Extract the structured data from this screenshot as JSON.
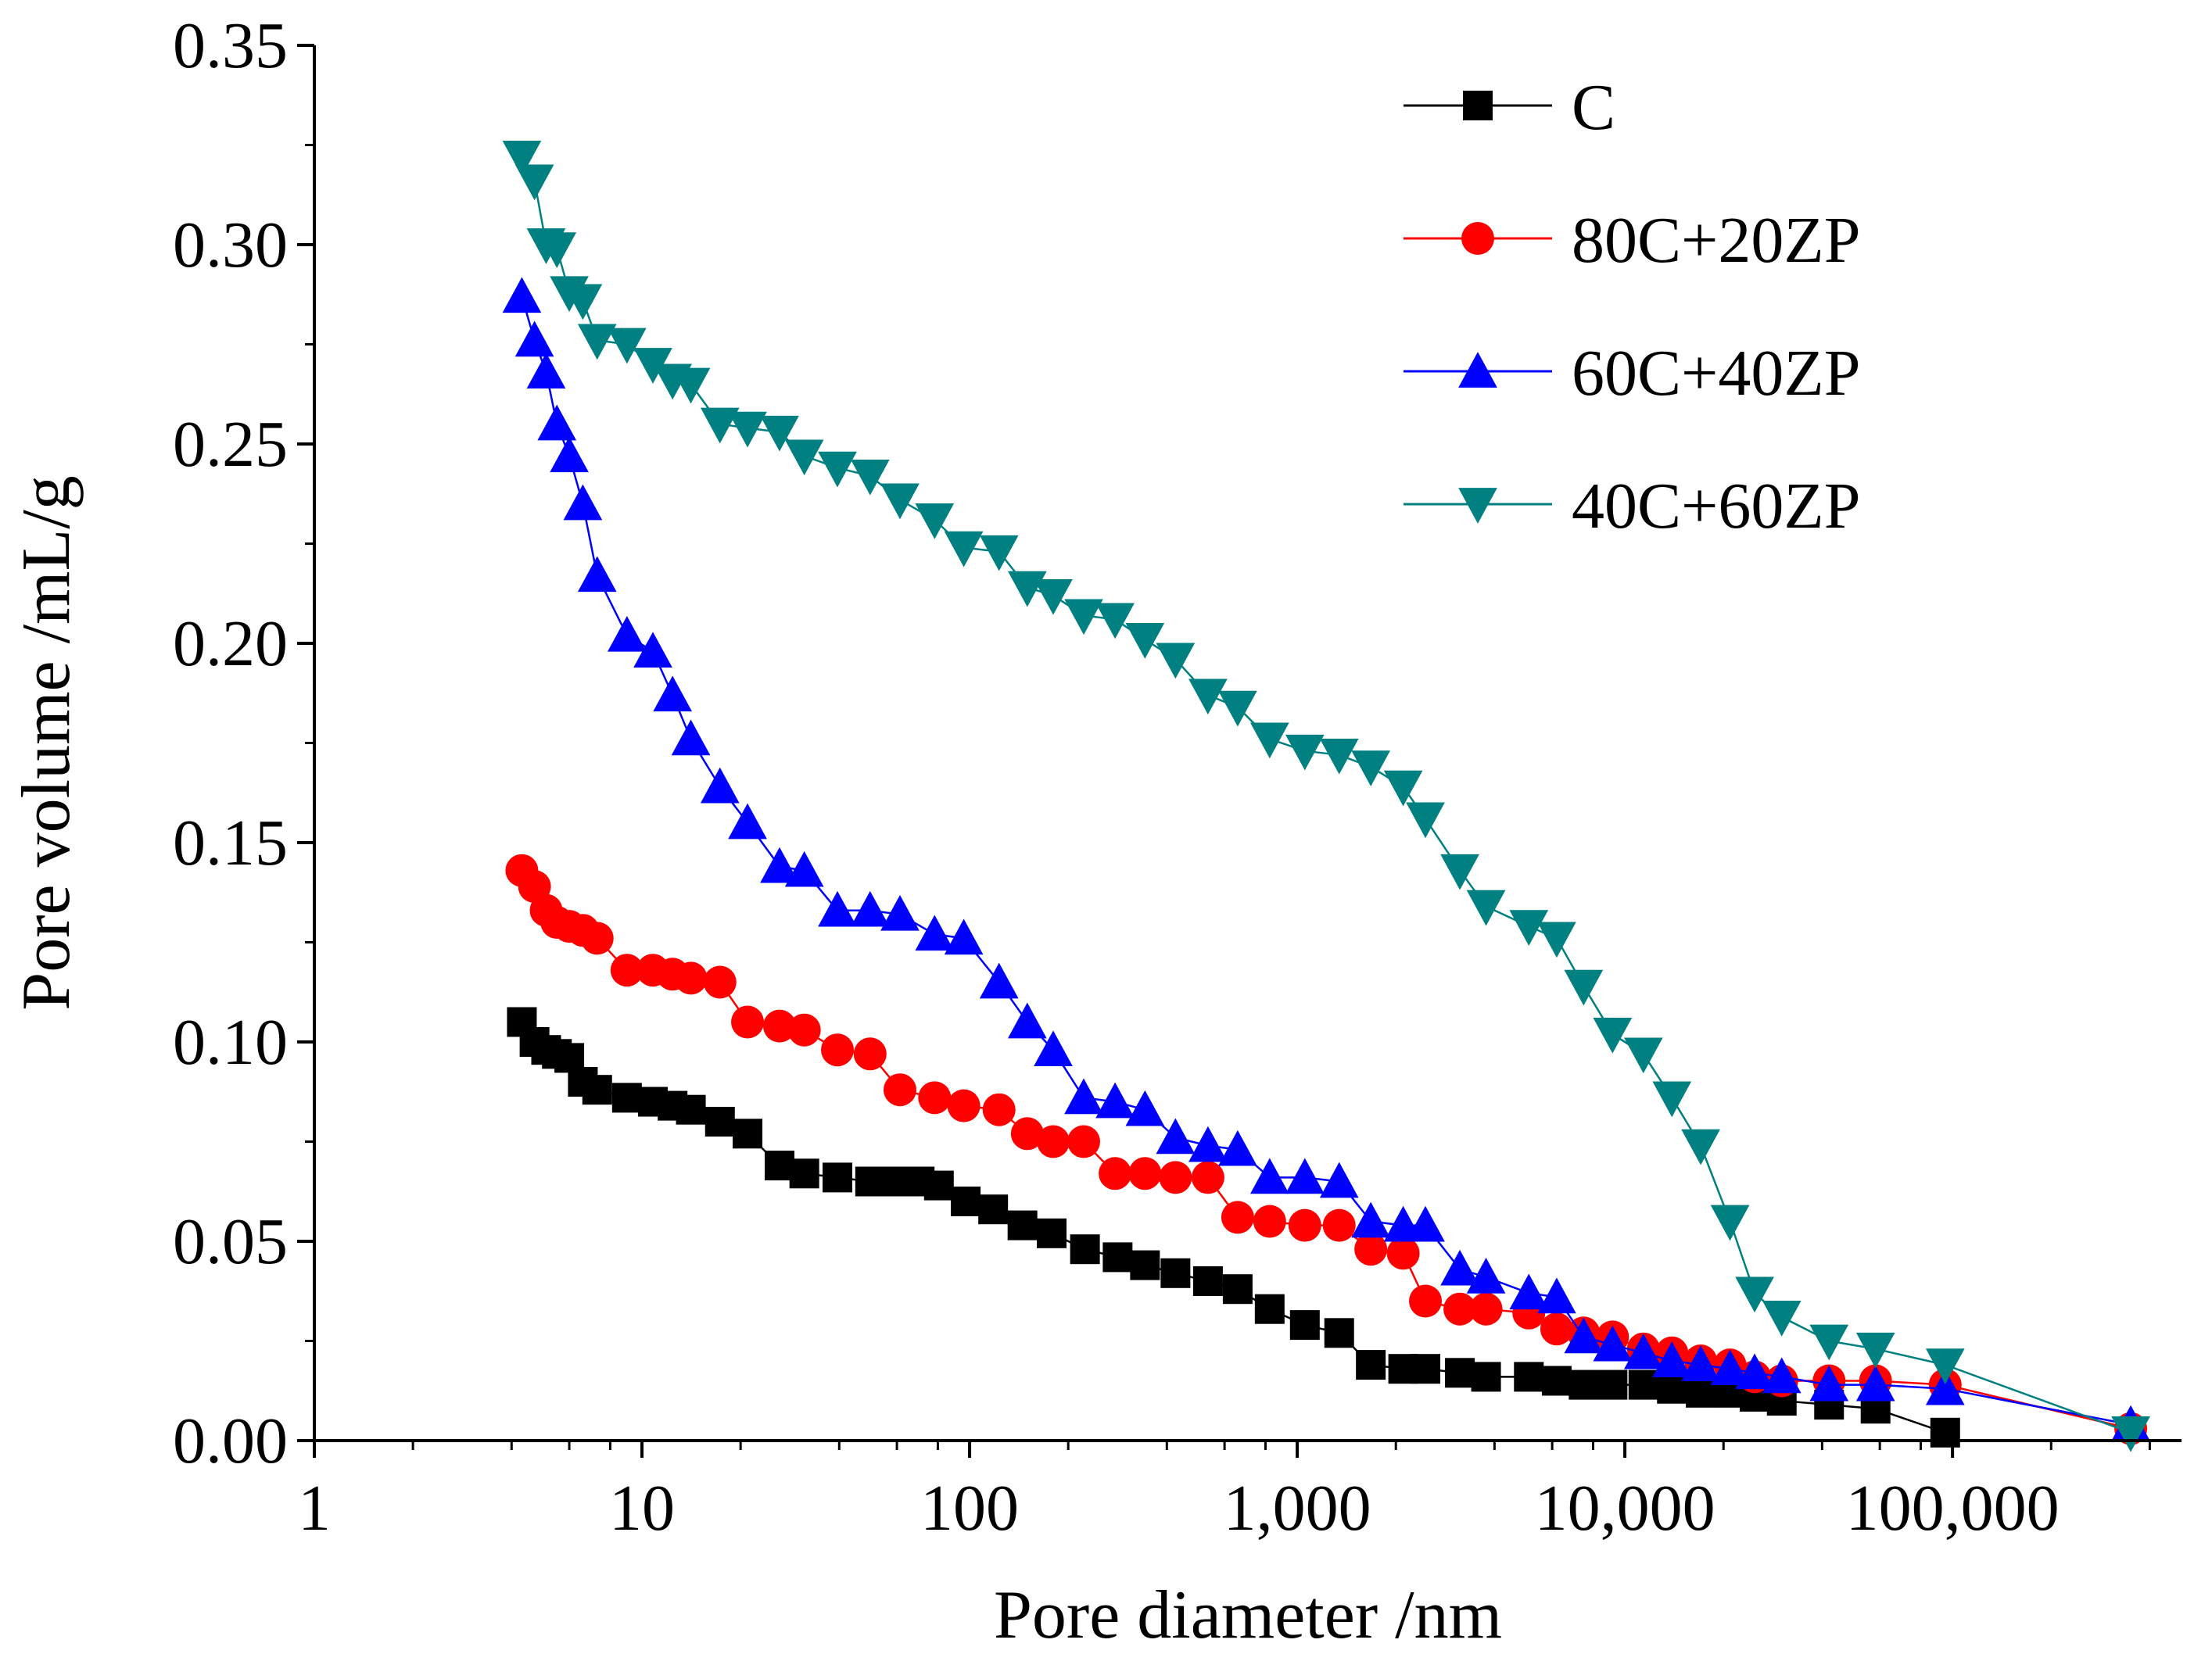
{
  "chart_data": {
    "type": "line",
    "title": "",
    "xlabel": "Pore diameter /nm",
    "ylabel": "Pore volume /mL/g",
    "xscale": "log",
    "xlim": [
      1,
      500000
    ],
    "ylim": [
      0,
      0.35
    ],
    "x_ticks": [
      1,
      10,
      100,
      1000,
      10000,
      100000
    ],
    "x_tick_labels": [
      "1",
      "10",
      "100",
      "1,000",
      "10,000",
      "100,000"
    ],
    "y_ticks": [
      0,
      0.05,
      0.1,
      0.15,
      0.2,
      0.25,
      0.3,
      0.35
    ],
    "y_tick_labels": [
      "0.00",
      "0.05",
      "0.10",
      "0.15",
      "0.20",
      "0.25",
      "0.30",
      "0.35"
    ],
    "legend_position": "top-right",
    "series": [
      {
        "name": "C",
        "color": "#000000",
        "marker": "square",
        "x": [
          4.3,
          4.7,
          5.1,
          5.5,
          6.0,
          6.6,
          7.3,
          9.0,
          10.8,
          12.4,
          14.1,
          17.3,
          21.0,
          26.3,
          31.3,
          39.5,
          49.7,
          59.7,
          70.4,
          80.6,
          97.3,
          118,
          145,
          178,
          225,
          283,
          343,
          425,
          534,
          658,
          824,
          1055,
          1343,
          1677,
          2106,
          2462,
          3136,
          3770,
          5092,
          6194,
          7484,
          9170,
          11392,
          13918,
          17041,
          20937,
          24895,
          30118,
          42003,
          58231,
          95000
        ],
        "y": [
          0.105,
          0.1,
          0.098,
          0.097,
          0.096,
          0.09,
          0.088,
          0.086,
          0.085,
          0.084,
          0.083,
          0.08,
          0.077,
          0.069,
          0.067,
          0.066,
          0.065,
          0.065,
          0.065,
          0.064,
          0.06,
          0.058,
          0.054,
          0.052,
          0.048,
          0.046,
          0.044,
          0.042,
          0.04,
          0.038,
          0.033,
          0.029,
          0.027,
          0.019,
          0.018,
          0.018,
          0.017,
          0.016,
          0.016,
          0.015,
          0.014,
          0.014,
          0.014,
          0.013,
          0.012,
          0.012,
          0.011,
          0.01,
          0.009,
          0.008,
          0.002
        ]
      },
      {
        "name": "80C+20ZP",
        "color": "#ff0000",
        "marker": "circle",
        "x": [
          4.3,
          4.7,
          5.1,
          5.5,
          6.0,
          6.6,
          7.3,
          9.0,
          10.8,
          12.4,
          14.1,
          17.3,
          21.0,
          26.3,
          31.3,
          39.5,
          49.7,
          61.3,
          78.2,
          96.0,
          123,
          150,
          180,
          223,
          278,
          343,
          425,
          534,
          658,
          824,
          1055,
          1343,
          1677,
          2106,
          2462,
          3136,
          3770,
          5092,
          6194,
          7484,
          9170,
          11392,
          13918,
          17041,
          20937,
          24895,
          30118,
          42003,
          58231,
          95000,
          350000
        ],
        "y": [
          0.143,
          0.139,
          0.133,
          0.13,
          0.129,
          0.128,
          0.126,
          0.118,
          0.118,
          0.117,
          0.116,
          0.115,
          0.105,
          0.104,
          0.103,
          0.098,
          0.097,
          0.088,
          0.086,
          0.084,
          0.083,
          0.077,
          0.075,
          0.075,
          0.067,
          0.067,
          0.066,
          0.066,
          0.056,
          0.055,
          0.054,
          0.054,
          0.048,
          0.047,
          0.035,
          0.033,
          0.033,
          0.032,
          0.028,
          0.027,
          0.026,
          0.023,
          0.022,
          0.02,
          0.019,
          0.016,
          0.015,
          0.015,
          0.015,
          0.014,
          0.003
        ]
      },
      {
        "name": "60C+40ZP",
        "color": "#0000ff",
        "marker": "triangle-up",
        "x": [
          4.3,
          4.7,
          5.1,
          5.5,
          6.0,
          6.6,
          7.3,
          9.0,
          10.8,
          12.4,
          14.1,
          17.3,
          21.0,
          26.3,
          31.3,
          39.5,
          49.7,
          61.3,
          78.2,
          96.0,
          123,
          150,
          180,
          223,
          278,
          343,
          425,
          534,
          658,
          824,
          1055,
          1343,
          1677,
          2106,
          2462,
          3136,
          3770,
          5092,
          6194,
          7484,
          9170,
          11392,
          13918,
          17041,
          20937,
          24895,
          30118,
          42003,
          58231,
          95000,
          350000
        ],
        "y": [
          0.287,
          0.276,
          0.268,
          0.255,
          0.247,
          0.235,
          0.217,
          0.202,
          0.198,
          0.187,
          0.176,
          0.164,
          0.155,
          0.144,
          0.143,
          0.133,
          0.133,
          0.132,
          0.127,
          0.126,
          0.115,
          0.105,
          0.098,
          0.086,
          0.085,
          0.083,
          0.076,
          0.074,
          0.073,
          0.066,
          0.066,
          0.065,
          0.055,
          0.054,
          0.054,
          0.043,
          0.041,
          0.037,
          0.036,
          0.026,
          0.024,
          0.022,
          0.02,
          0.019,
          0.018,
          0.017,
          0.016,
          0.014,
          0.014,
          0.013,
          0.004
        ]
      },
      {
        "name": "40C+60ZP",
        "color": "#008080",
        "marker": "triangle-down",
        "x": [
          4.3,
          4.7,
          5.1,
          5.5,
          6.0,
          6.6,
          7.3,
          9.0,
          10.8,
          12.4,
          14.1,
          17.3,
          21.0,
          26.3,
          31.3,
          39.5,
          49.7,
          61.3,
          78.2,
          96.0,
          123,
          150,
          180,
          223,
          278,
          343,
          425,
          534,
          658,
          824,
          1055,
          1343,
          1677,
          2106,
          2462,
          3136,
          3770,
          5092,
          6194,
          7484,
          9170,
          11392,
          13918,
          17041,
          20937,
          24895,
          30118,
          42003,
          58231,
          95000,
          350000
        ],
        "y": [
          0.322,
          0.316,
          0.3,
          0.299,
          0.288,
          0.286,
          0.276,
          0.275,
          0.27,
          0.266,
          0.265,
          0.255,
          0.254,
          0.253,
          0.247,
          0.244,
          0.242,
          0.236,
          0.231,
          0.224,
          0.223,
          0.214,
          0.212,
          0.207,
          0.206,
          0.201,
          0.196,
          0.187,
          0.184,
          0.176,
          0.173,
          0.172,
          0.169,
          0.164,
          0.156,
          0.143,
          0.134,
          0.129,
          0.126,
          0.114,
          0.102,
          0.097,
          0.086,
          0.074,
          0.055,
          0.037,
          0.031,
          0.025,
          0.023,
          0.019,
          0.002
        ]
      }
    ]
  }
}
